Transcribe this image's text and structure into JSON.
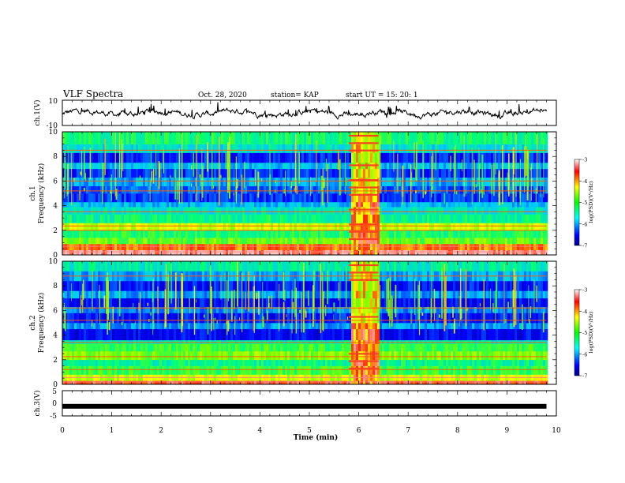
{
  "header": {
    "title": "VLF Spectra",
    "date": "Oct. 28, 2020",
    "station": "station= KAP",
    "start": "start  UT  =   15: 20: 1"
  },
  "chart_data": [
    {
      "type": "line",
      "name": "ch1-waveform",
      "ylabel": "ch.1(V)",
      "ylim": [
        -10,
        10
      ],
      "yticks": [
        "10",
        "-10"
      ],
      "xlim": [
        0,
        10
      ]
    },
    {
      "type": "heatmap",
      "name": "ch1-spectrogram",
      "ylabel_line1": "ch.1",
      "ylabel_line2": "Frequency (kHz)",
      "ylim": [
        0,
        10
      ],
      "yticks": [
        "0",
        "2",
        "4",
        "6",
        "8",
        "10"
      ],
      "xlim": [
        0,
        10
      ],
      "colorbar": {
        "label": "log(PSD)(V²/Hz)",
        "range": [
          -7,
          -3
        ],
        "ticks": [
          "-3",
          "-4",
          "-5",
          "-6",
          "-7"
        ]
      }
    },
    {
      "type": "heatmap",
      "name": "ch2-spectrogram",
      "ylabel_line1": "ch.2",
      "ylabel_line2": "Frequency (kHz)",
      "ylim": [
        0,
        10
      ],
      "yticks": [
        "0",
        "2",
        "4",
        "6",
        "8",
        "10"
      ],
      "xlim": [
        0,
        10
      ],
      "colorbar": {
        "label": "log(PSD)(V²/Hz)",
        "range": [
          -7,
          -3
        ],
        "ticks": [
          "-3",
          "-4",
          "-5",
          "-6",
          "-7"
        ]
      }
    },
    {
      "type": "line",
      "name": "ch3-waveform",
      "ylabel": "ch.3(V)",
      "ylim": [
        -5,
        5
      ],
      "yticks": [
        "5",
        "0",
        "-5"
      ],
      "xlim": [
        0,
        10
      ],
      "level": -1.2
    }
  ],
  "xaxis": {
    "label": "Time  (min)",
    "ticks": [
      "0",
      "1",
      "2",
      "3",
      "4",
      "5",
      "6",
      "7",
      "8",
      "9",
      "10"
    ],
    "data_end": 9.8,
    "burst_start": 5.8,
    "burst_end": 6.4
  }
}
